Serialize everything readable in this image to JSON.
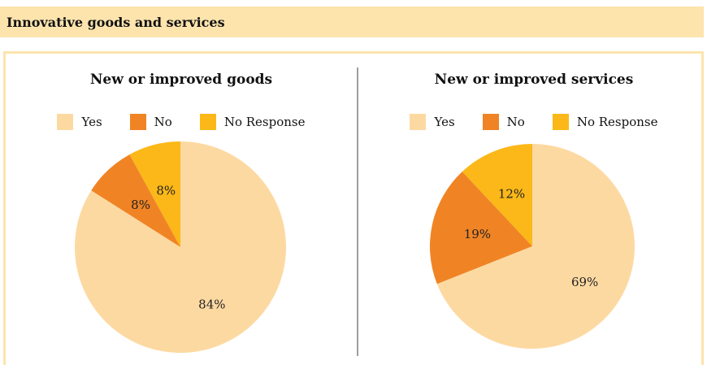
{
  "header": {
    "title": "Innovative goods and services"
  },
  "legend": [
    {
      "label": "Yes",
      "color": "#fdd9a2"
    },
    {
      "label": "No",
      "color": "#f08424"
    },
    {
      "label": "No Response",
      "color": "#fbb818"
    }
  ],
  "chart_data": [
    {
      "type": "pie",
      "title": "New or improved goods",
      "categories": [
        "Yes",
        "No",
        "No Response"
      ],
      "values": [
        84,
        8,
        8
      ],
      "labels": [
        "84%",
        "8%",
        "8%"
      ],
      "colors": [
        "#fdd9a2",
        "#f08424",
        "#fbb818"
      ],
      "legend_position": "top"
    },
    {
      "type": "pie",
      "title": "New or improved services",
      "categories": [
        "Yes",
        "No",
        "No Response"
      ],
      "values": [
        69,
        19,
        12
      ],
      "labels": [
        "69%",
        "19%",
        "12%"
      ],
      "colors": [
        "#fdd9a2",
        "#f08424",
        "#fbb818"
      ],
      "legend_position": "top"
    }
  ]
}
